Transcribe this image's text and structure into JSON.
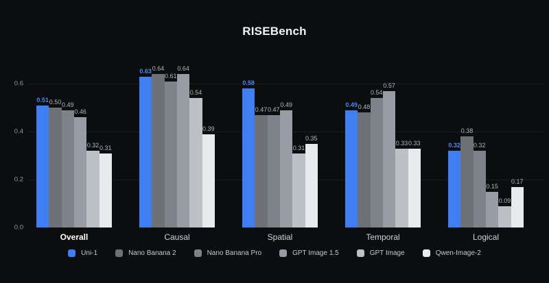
{
  "title": "RISEBench",
  "chart_data": {
    "type": "bar",
    "title": "RISEBench",
    "xlabel": "",
    "ylabel": "",
    "categories": [
      "Overall",
      "Causal",
      "Spatial",
      "Temporal",
      "Logical"
    ],
    "series": [
      {
        "name": "Uni-1",
        "color": "#3f7ef3",
        "label_color": "#4e86f5",
        "label_bold": true,
        "values": [
          0.51,
          0.63,
          0.58,
          0.49,
          0.32
        ]
      },
      {
        "name": "Nano Banana 2",
        "color": "#6d7074",
        "values": [
          0.5,
          0.64,
          0.47,
          0.48,
          0.38
        ]
      },
      {
        "name": "Nano Banana Pro",
        "color": "#7e828a",
        "values": [
          0.49,
          0.61,
          0.47,
          0.54,
          0.32
        ]
      },
      {
        "name": "GPT Image 1.5",
        "color": "#989ca4",
        "values": [
          0.46,
          0.64,
          0.49,
          0.57,
          0.15
        ]
      },
      {
        "name": "GPT Image",
        "color": "#bdc0c5",
        "values": [
          0.32,
          0.54,
          0.31,
          0.33,
          0.09
        ]
      },
      {
        "name": "Qwen-Image-2",
        "color": "#e9eaed",
        "values": [
          0.31,
          0.39,
          0.35,
          0.33,
          0.17
        ]
      }
    ],
    "yticks": [
      0.0,
      0.2,
      0.4,
      0.6
    ],
    "ylim": [
      0,
      0.7
    ],
    "grid": true,
    "legend_position": "bottom",
    "emphasized_category": "Overall",
    "styles": {
      "background": "#0c0d0f",
      "title_color": "#f2f3f4",
      "grid_color": "#1c1d20",
      "tick_label_color": "#96979a",
      "value_label_color": "#b5b7bb",
      "category_label_color": "#d2d3d6",
      "category_label_emphasis_color": "#ffffff",
      "legend_text_color": "#c7c9cc"
    }
  }
}
